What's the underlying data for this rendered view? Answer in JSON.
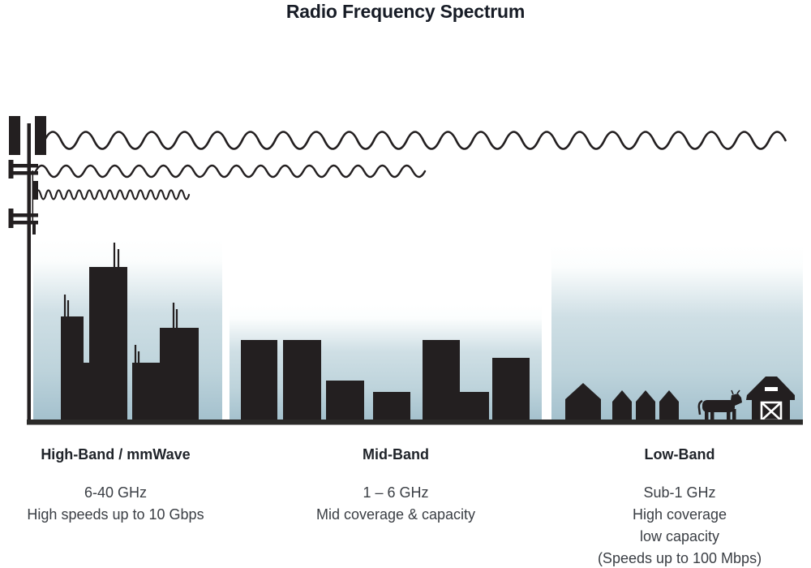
{
  "title": "Radio Frequency Spectrum",
  "bands": [
    {
      "id": "high-band",
      "heading": "High-Band / mmWave",
      "lines": [
        "6-40 GHz",
        "High speeds up to 10 Gbps"
      ],
      "scene": "city skyscrapers with rooftop antennas",
      "wave": "short-wavelength wave (highest frequency, shortest reach)"
    },
    {
      "id": "mid-band",
      "heading": "Mid-Band",
      "lines": [
        "1 – 6 GHz",
        "Mid coverage & capacity"
      ],
      "scene": "mid-rise suburban buildings",
      "wave": "medium-wavelength wave (medium reach)"
    },
    {
      "id": "low-band",
      "heading": "Low-Band",
      "lines": [
        "Sub-1 GHz",
        "High coverage",
        "low capacity",
        "(Speeds up to 100 Mbps)"
      ],
      "scene": "rural houses, cow and barn",
      "wave": "long-wavelength wave (lowest frequency, longest reach)"
    }
  ],
  "icons": {
    "tower": "cell-tower-icon",
    "waves": [
      "low-band-wave-icon",
      "mid-band-wave-icon",
      "high-band-wave-icon"
    ],
    "high_scene": "skyscrapers-icon",
    "mid_scene": "mid-rise-buildings-icon",
    "low_scene": [
      "house-icon",
      "cow-icon",
      "barn-icon"
    ]
  },
  "colors": {
    "ink": "#231f20",
    "title_ink": "#171c26",
    "heading_ink": "#20242a",
    "body_ink": "#3a3e44",
    "sky_bottom": "#a3c0cd",
    "sky_mid": "#cfdfe5",
    "sky_top": "#ffffff",
    "ground": "#2b2a29"
  }
}
